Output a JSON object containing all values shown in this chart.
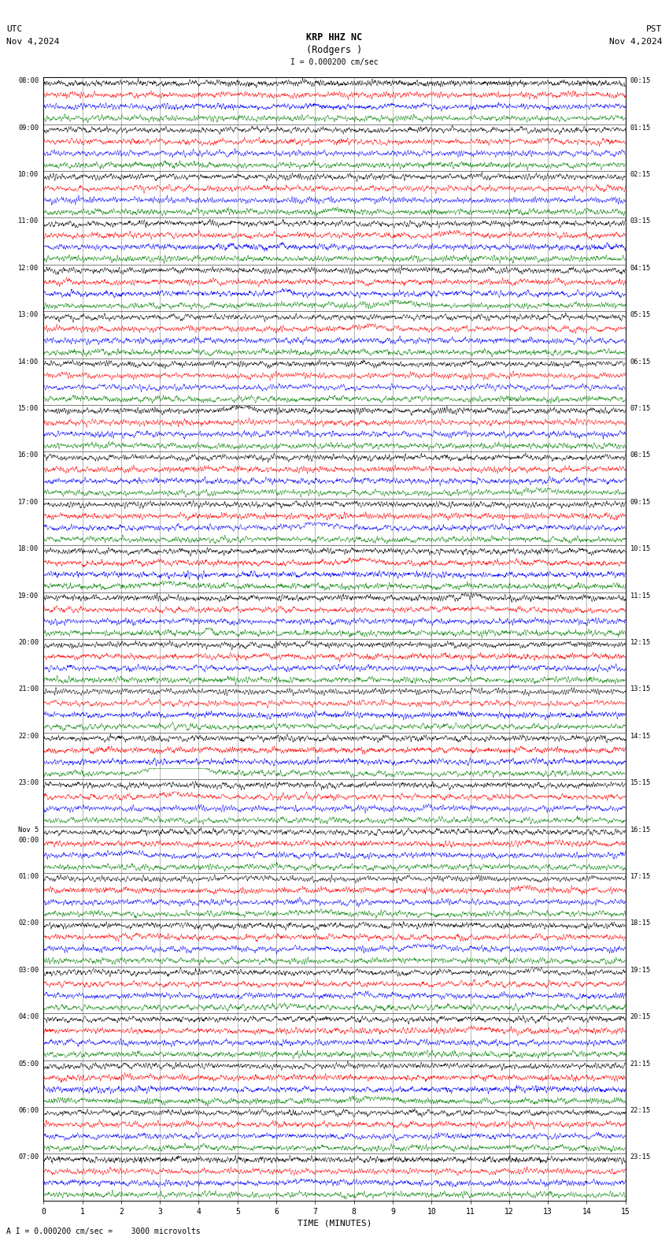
{
  "title_center": "KRP HHZ NC",
  "title_center2": "(Rodgers )",
  "title_left": "UTC\nNov 4,2024",
  "title_right": "PST\nNov 4,2024",
  "scale_label": "I = 0.000200 cm/sec",
  "bottom_label": "A I = 0.000200 cm/sec =    3000 microvolts",
  "xlabel": "TIME (MINUTES)",
  "num_rows": 24,
  "minutes_per_row": 15,
  "traces_per_row": 4,
  "colors": [
    "black",
    "red",
    "blue",
    "green"
  ],
  "bg_color": "white",
  "figwidth": 8.5,
  "figheight": 15.84,
  "left_labels_utc": [
    "08:00",
    "09:00",
    "10:00",
    "11:00",
    "12:00",
    "13:00",
    "14:00",
    "15:00",
    "16:00",
    "17:00",
    "18:00",
    "19:00",
    "20:00",
    "21:00",
    "22:00",
    "23:00",
    "Nov 5\n00:00",
    "01:00",
    "02:00",
    "03:00",
    "04:00",
    "05:00",
    "06:00",
    "07:00"
  ],
  "right_labels_pst": [
    "00:15",
    "01:15",
    "02:15",
    "03:15",
    "04:15",
    "05:15",
    "06:15",
    "07:15",
    "08:15",
    "09:15",
    "10:15",
    "11:15",
    "12:15",
    "13:15",
    "14:15",
    "15:15",
    "16:15",
    "17:15",
    "18:15",
    "19:15",
    "20:15",
    "21:15",
    "22:15",
    "23:15"
  ],
  "green_spike_row": 14,
  "green_spike_minute": 3.5
}
